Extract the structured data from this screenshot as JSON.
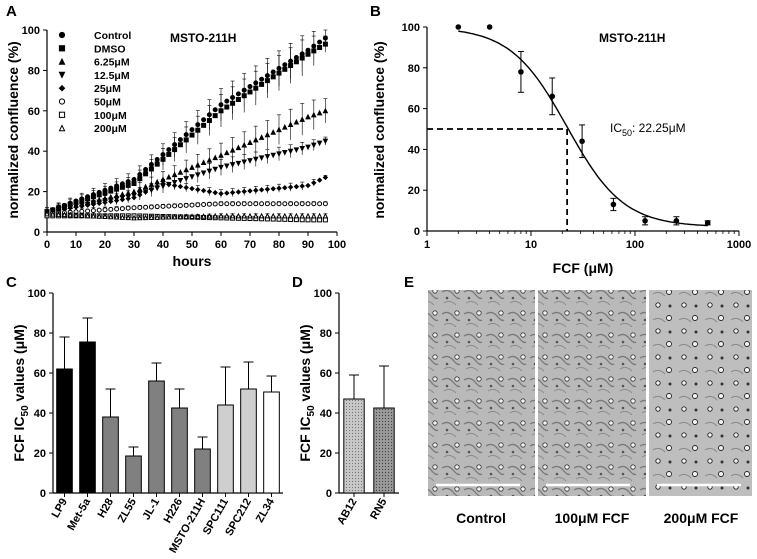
{
  "chart_data": [
    {
      "panel": "A",
      "type": "scatter",
      "annotation": "MSTO-211H",
      "xlabel": "hours",
      "ylabel": "normalized confluence (%)",
      "xlim": [
        0,
        100
      ],
      "ylim": [
        0,
        100
      ],
      "xticks": [
        0,
        10,
        20,
        30,
        40,
        50,
        60,
        70,
        80,
        90,
        100
      ],
      "yticks": [
        0,
        20,
        40,
        60,
        80,
        100
      ],
      "legend_position": "top-left",
      "series": [
        {
          "name": "Control",
          "marker": "filled-circle",
          "x": [
            0,
            30,
            60,
            90,
            96
          ],
          "y": [
            10,
            26,
            63,
            90,
            96
          ],
          "err": [
            2,
            4,
            8,
            9,
            4
          ]
        },
        {
          "name": "DMSO",
          "marker": "filled-square",
          "x": [
            0,
            30,
            60,
            90,
            96
          ],
          "y": [
            10,
            24,
            60,
            88,
            93
          ],
          "err": [
            2,
            4,
            8,
            9,
            4
          ]
        },
        {
          "name": "6.25μM",
          "marker": "filled-triangle-up",
          "x": [
            0,
            30,
            60,
            90,
            96
          ],
          "y": [
            10,
            20,
            38,
            57,
            60
          ],
          "err": [
            2,
            3,
            6,
            8,
            6
          ]
        },
        {
          "name": "12.5μM",
          "marker": "filled-triangle-down",
          "x": [
            0,
            30,
            60,
            90,
            96
          ],
          "y": [
            10,
            18,
            32,
            42,
            45
          ],
          "err": [
            2,
            3,
            4,
            3,
            2
          ]
        },
        {
          "name": "25μM",
          "marker": "filled-diamond",
          "x": [
            0,
            30,
            40,
            60,
            90,
            96
          ],
          "y": [
            10,
            17,
            24,
            19,
            23,
            27
          ],
          "err": [
            2,
            2,
            2,
            2,
            2,
            1
          ]
        },
        {
          "name": "50μM",
          "marker": "open-circle",
          "x": [
            0,
            30,
            60,
            90,
            96
          ],
          "y": [
            9,
            12,
            14,
            14,
            14
          ],
          "err": [
            2,
            1,
            1,
            1,
            1
          ]
        },
        {
          "name": "100μM",
          "marker": "open-square",
          "x": [
            0,
            30,
            60,
            90,
            96
          ],
          "y": [
            8,
            8,
            7,
            6,
            6
          ],
          "err": [
            1,
            1,
            1,
            1,
            1
          ]
        },
        {
          "name": "200μM",
          "marker": "open-triangle-up",
          "x": [
            0,
            30,
            60,
            90,
            96
          ],
          "y": [
            9,
            7,
            8,
            8,
            8
          ],
          "err": [
            1,
            1,
            1,
            1,
            1
          ]
        }
      ]
    },
    {
      "panel": "B",
      "type": "scatter",
      "annotation": "MSTO-211H",
      "xlabel": "FCF (μM)",
      "ylabel": "normalized confluence (%)",
      "xscale": "log",
      "xlim": [
        1,
        1000
      ],
      "ylim": [
        0,
        100
      ],
      "xticks": [
        1,
        10,
        100,
        1000
      ],
      "yticks": [
        0,
        20,
        40,
        60,
        80,
        100
      ],
      "ic50_label": "IC",
      "ic50_sub": "50",
      "ic50_value": ": 22.25μM",
      "ic50": 22.25,
      "points": {
        "x": [
          2,
          4,
          8,
          16,
          31,
          62,
          125,
          250,
          500
        ],
        "y": [
          100,
          100,
          78,
          66,
          44,
          13,
          5,
          5,
          4
        ],
        "err": [
          0,
          0,
          10,
          9,
          8,
          3,
          2,
          2,
          1
        ]
      },
      "fit": {
        "top": 100,
        "bottom": 2,
        "ic50": 22.25,
        "hill": 1.6
      }
    },
    {
      "panel": "C",
      "type": "bar",
      "ylabel_main": "FCF IC",
      "ylabel_sub": "50",
      "ylabel_tail": " values (μM)",
      "ylim": [
        0,
        100
      ],
      "yticks": [
        0,
        20,
        40,
        60,
        80,
        100
      ],
      "categories": [
        "LP9",
        "Met-5a",
        "H28",
        "ZL55",
        "JL-1",
        "H226",
        "MSTO-211H",
        "SPC111",
        "SPC212",
        "ZL34"
      ],
      "values": [
        62,
        75.5,
        38,
        18.5,
        56,
        42.5,
        22,
        44,
        52,
        50.5
      ],
      "errors": [
        16,
        12,
        14,
        4.5,
        9,
        9.5,
        6,
        19,
        13.5,
        8
      ],
      "colors": [
        "#000000",
        "#000000",
        "#808080",
        "#808080",
        "#808080",
        "#808080",
        "#808080",
        "#cfcfcf",
        "#cfcfcf",
        "#ffffff"
      ]
    },
    {
      "panel": "D",
      "type": "bar",
      "ylabel_main": "FCF IC",
      "ylabel_sub": "50",
      "ylabel_tail": " values (μM)",
      "ylim": [
        0,
        100
      ],
      "yticks": [
        0,
        20,
        40,
        60,
        80,
        100
      ],
      "categories": [
        "AB12",
        "RN5"
      ],
      "values": [
        47,
        42.5
      ],
      "errors": [
        12,
        21
      ],
      "colors": [
        "#bdbdbd",
        "#9e9e9e"
      ]
    }
  ],
  "panel_letters": [
    "A",
    "B",
    "C",
    "D",
    "E"
  ],
  "micrographs": {
    "captions": [
      "Control",
      "100μM FCF",
      "200μM FCF"
    ]
  }
}
